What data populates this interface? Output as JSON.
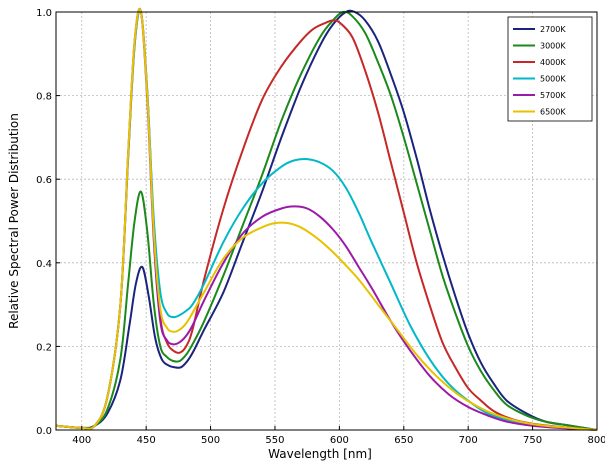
{
  "chart_data": {
    "type": "line",
    "title": "",
    "xlabel": "Wavelength [nm]",
    "ylabel": "Relative Spectral Power Distribution",
    "xlim": [
      380,
      800
    ],
    "ylim": [
      0.0,
      1.0
    ],
    "xticks": [
      400,
      450,
      500,
      550,
      600,
      650,
      700,
      750,
      800
    ],
    "yticks": [
      0.0,
      0.2,
      0.4,
      0.6,
      0.8,
      1.0
    ],
    "xtick_labels": [
      "400",
      "450",
      "500",
      "550",
      "600",
      "650",
      "700",
      "750",
      "800"
    ],
    "ytick_labels": [
      "0.0",
      "0.2",
      "0.4",
      "0.6",
      "0.8",
      "1.0"
    ],
    "grid": true,
    "legend_position": "top-right",
    "series": [
      {
        "name": "2700K",
        "color": "#1a237e",
        "x": [
          380,
          400,
          410,
          420,
          430,
          437,
          442,
          447,
          452,
          457,
          462,
          467,
          472,
          477,
          482,
          487,
          495,
          510,
          525,
          540,
          555,
          570,
          585,
          595,
          605,
          612,
          620,
          630,
          640,
          650,
          660,
          670,
          680,
          690,
          700,
          710,
          720,
          730,
          745,
          760,
          780,
          800
        ],
        "y": [
          0.01,
          0.005,
          0.01,
          0.04,
          0.12,
          0.25,
          0.35,
          0.39,
          0.32,
          0.22,
          0.17,
          0.155,
          0.15,
          0.15,
          0.165,
          0.19,
          0.24,
          0.33,
          0.45,
          0.57,
          0.7,
          0.82,
          0.92,
          0.97,
          1.0,
          1.0,
          0.98,
          0.93,
          0.85,
          0.76,
          0.65,
          0.53,
          0.42,
          0.32,
          0.23,
          0.16,
          0.11,
          0.07,
          0.04,
          0.02,
          0.01,
          0.0
        ]
      },
      {
        "name": "3000K",
        "color": "#1b8a1b",
        "x": [
          380,
          400,
          410,
          420,
          430,
          436,
          441,
          446,
          451,
          456,
          461,
          466,
          471,
          476,
          481,
          486,
          495,
          510,
          525,
          540,
          555,
          570,
          585,
          595,
          603,
          610,
          620,
          630,
          640,
          650,
          660,
          670,
          680,
          690,
          700,
          710,
          720,
          730,
          745,
          760,
          780,
          800
        ],
        "y": [
          0.01,
          0.005,
          0.01,
          0.05,
          0.17,
          0.35,
          0.5,
          0.57,
          0.47,
          0.3,
          0.2,
          0.175,
          0.165,
          0.165,
          0.18,
          0.205,
          0.26,
          0.37,
          0.49,
          0.61,
          0.74,
          0.85,
          0.94,
          0.98,
          1.0,
          0.99,
          0.95,
          0.88,
          0.8,
          0.7,
          0.59,
          0.48,
          0.37,
          0.28,
          0.2,
          0.14,
          0.095,
          0.06,
          0.035,
          0.02,
          0.01,
          0.0
        ]
      },
      {
        "name": "4000K",
        "color": "#c62828",
        "x": [
          380,
          400,
          410,
          420,
          430,
          436,
          441,
          446,
          451,
          456,
          461,
          466,
          471,
          476,
          481,
          486,
          495,
          510,
          525,
          540,
          555,
          570,
          580,
          590,
          595,
          600,
          610,
          620,
          630,
          640,
          650,
          660,
          670,
          680,
          690,
          700,
          710,
          720,
          735,
          750,
          770,
          800
        ],
        "y": [
          0.01,
          0.005,
          0.01,
          0.08,
          0.3,
          0.65,
          0.92,
          1.0,
          0.8,
          0.48,
          0.27,
          0.21,
          0.19,
          0.185,
          0.2,
          0.24,
          0.36,
          0.53,
          0.67,
          0.79,
          0.87,
          0.93,
          0.96,
          0.975,
          0.98,
          0.975,
          0.94,
          0.86,
          0.76,
          0.64,
          0.52,
          0.4,
          0.3,
          0.21,
          0.15,
          0.1,
          0.07,
          0.045,
          0.025,
          0.015,
          0.008,
          0.0
        ]
      },
      {
        "name": "5000K",
        "color": "#00b8c8",
        "x": [
          380,
          400,
          410,
          420,
          430,
          436,
          441,
          446,
          451,
          456,
          461,
          466,
          471,
          476,
          481,
          486,
          495,
          510,
          525,
          540,
          555,
          565,
          575,
          585,
          595,
          605,
          615,
          625,
          640,
          655,
          670,
          685,
          700,
          715,
          730,
          750,
          770,
          800
        ],
        "y": [
          0.01,
          0.005,
          0.01,
          0.08,
          0.3,
          0.65,
          0.92,
          1.0,
          0.8,
          0.5,
          0.33,
          0.28,
          0.27,
          0.275,
          0.285,
          0.3,
          0.35,
          0.45,
          0.53,
          0.59,
          0.63,
          0.645,
          0.648,
          0.64,
          0.62,
          0.58,
          0.52,
          0.45,
          0.35,
          0.25,
          0.17,
          0.11,
          0.07,
          0.04,
          0.025,
          0.013,
          0.006,
          0.0
        ]
      },
      {
        "name": "5700K",
        "color": "#9c1aa8",
        "x": [
          380,
          400,
          410,
          420,
          430,
          436,
          441,
          446,
          451,
          456,
          461,
          466,
          471,
          476,
          481,
          486,
          495,
          510,
          525,
          540,
          555,
          565,
          575,
          585,
          595,
          605,
          615,
          625,
          640,
          655,
          670,
          685,
          700,
          715,
          730,
          750,
          770,
          800
        ],
        "y": [
          0.01,
          0.005,
          0.01,
          0.08,
          0.3,
          0.66,
          0.93,
          1.0,
          0.78,
          0.45,
          0.26,
          0.215,
          0.205,
          0.21,
          0.225,
          0.25,
          0.31,
          0.4,
          0.47,
          0.51,
          0.53,
          0.535,
          0.53,
          0.51,
          0.48,
          0.44,
          0.39,
          0.34,
          0.26,
          0.19,
          0.13,
          0.085,
          0.055,
          0.035,
          0.02,
          0.01,
          0.005,
          0.0
        ]
      },
      {
        "name": "6500K",
        "color": "#e6c200",
        "x": [
          380,
          400,
          410,
          420,
          430,
          436,
          441,
          446,
          451,
          456,
          461,
          466,
          471,
          476,
          481,
          486,
          495,
          510,
          525,
          540,
          550,
          560,
          570,
          580,
          590,
          600,
          615,
          630,
          645,
          660,
          675,
          690,
          705,
          720,
          740,
          760,
          780,
          800
        ],
        "y": [
          0.01,
          0.005,
          0.01,
          0.08,
          0.3,
          0.66,
          0.93,
          1.0,
          0.79,
          0.47,
          0.29,
          0.245,
          0.235,
          0.24,
          0.255,
          0.28,
          0.33,
          0.41,
          0.46,
          0.485,
          0.495,
          0.495,
          0.485,
          0.465,
          0.44,
          0.41,
          0.36,
          0.3,
          0.24,
          0.18,
          0.13,
          0.09,
          0.06,
          0.038,
          0.02,
          0.01,
          0.005,
          0.0
        ]
      }
    ]
  }
}
